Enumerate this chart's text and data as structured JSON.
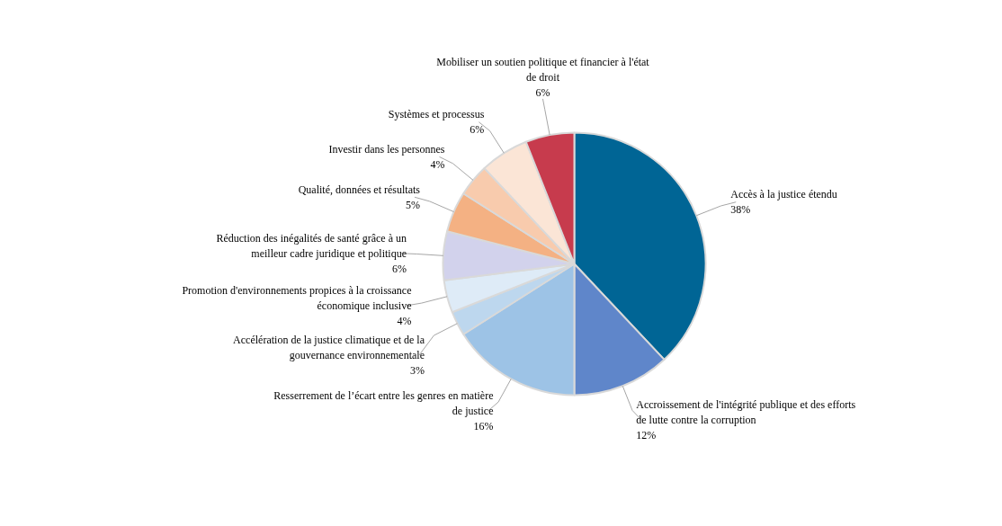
{
  "chart_data": {
    "type": "pie",
    "categories": [
      "Accès à la justice étendu",
      "Accroissement de l'intégrité publique et des efforts de lutte contre la corruption",
      "Resserrement de l’écart entre les genres en matière de justice",
      "Accélération de la justice climatique et de la gouvernance environnementale",
      "Promotion d'environnements propices à la croissance économique inclusive",
      "Réduction des inégalités de santé grâce à un meilleur cadre juridique et politique",
      "Qualité, données et résultats",
      "Investir dans les personnes",
      "Systèmes et processus",
      "Mobiliser un soutien politique et financier à l'état de droit"
    ],
    "values": [
      38,
      12,
      16,
      3,
      4,
      6,
      5,
      4,
      6,
      6
    ],
    "value_labels": [
      "38%",
      "12%",
      "16%",
      "3%",
      "4%",
      "6%",
      "5%",
      "4%",
      "6%",
      "6%"
    ],
    "colors": [
      "#006595",
      "#5f86ca",
      "#9dc3e6",
      "#bdd7ee",
      "#deebf7",
      "#d2d2ec",
      "#f4b183",
      "#f8cbad",
      "#fbe5d6",
      "#c73b4d"
    ]
  }
}
